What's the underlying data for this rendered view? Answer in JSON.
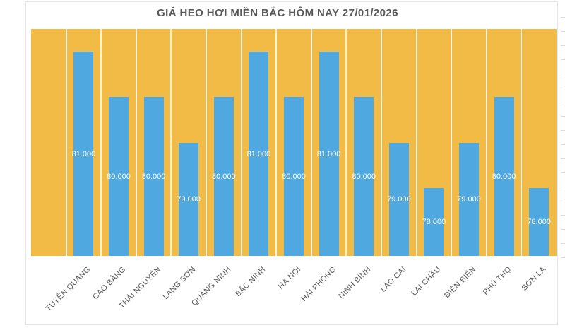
{
  "chart_data": {
    "type": "bar",
    "title": "GIÁ HEO HƠI MIỀN BẮC HÔM NAY 27/01/2026",
    "categories": [
      "TUYÊN QUANG",
      "CAO BẰNG",
      "THÁI NGUYÊN",
      "LẠNG SƠN",
      "QUẢNG NINH",
      "BẮC NINH",
      "HÀ NỘI",
      "HẢI PHÒNG",
      "NINH BÌNH",
      "LÀO CAI",
      "LAI CHÂU",
      "ĐIỆN BIÊN",
      "PHÚ THỌ",
      "SƠN LA"
    ],
    "values": [
      81000,
      80000,
      80000,
      79000,
      80000,
      81000,
      80000,
      81000,
      80000,
      79000,
      78000,
      79000,
      80000,
      78000
    ],
    "value_labels": [
      "81.000",
      "80.000",
      "80.000",
      "79.000",
      "80.000",
      "81.000",
      "80.000",
      "81.000",
      "80.000",
      "79.000",
      "78.000",
      "79.000",
      "80.000",
      "78.000"
    ],
    "xlabel": "",
    "ylabel": "",
    "ylim": [
      76500,
      81500
    ],
    "axis_tick_labels_visible": false,
    "legend": "none",
    "grid": "vertical category separators only",
    "leading_empty_category": true,
    "x_label_rotation_deg": 45,
    "value_label_position": "center of bar",
    "colors": {
      "plot_background": "#F2BB45",
      "bar": "#4FA8DF",
      "title_text": "#595959",
      "category_text": "#595959",
      "value_label_text": "#FFFFFF",
      "separator_line": "#F8F2E4",
      "chart_border": "#E6E6E6"
    }
  }
}
